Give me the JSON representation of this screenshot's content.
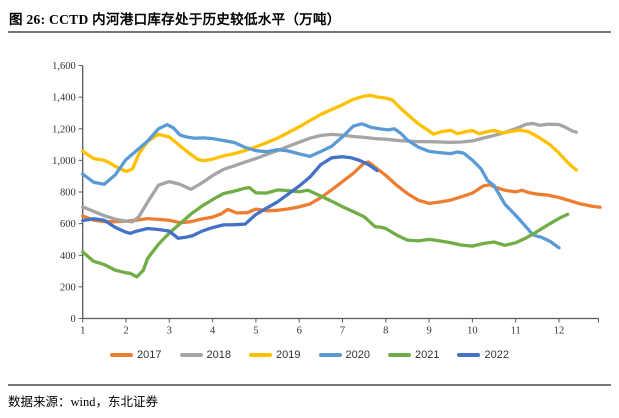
{
  "title": "图 26: CCTD 内河港口库存处于历史较低水平（万吨）",
  "source": "数据来源：wind，东北证券",
  "axis_color": "#595959",
  "tick_label_color": "#333333",
  "chart_data": {
    "type": "line",
    "title": "CCTD内河港口库存（万吨）",
    "xlabel": "",
    "ylabel": "",
    "xlim": [
      1,
      12.95
    ],
    "ylim": [
      0,
      1600
    ],
    "grid": false,
    "legend_position": "bottom",
    "y_tick_values": [
      0,
      200,
      400,
      600,
      800,
      1000,
      1200,
      1400,
      1600
    ],
    "y_tick_labels": [
      "0",
      "200",
      "400",
      "600",
      "800",
      "1,000",
      "1,200",
      "1,400",
      "1,600"
    ],
    "x_tick_values": [
      1,
      2,
      3,
      4,
      5,
      6,
      7,
      8,
      9,
      10,
      11,
      12
    ],
    "x_tick_labels": [
      "1",
      "2",
      "3",
      "4",
      "5",
      "6",
      "7",
      "8",
      "9",
      "10",
      "11",
      "12"
    ],
    "series": [
      {
        "name": "2017",
        "color": "#ED7D31",
        "points": [
          [
            1,
            648
          ],
          [
            1.25,
            622
          ],
          [
            1.5,
            613
          ],
          [
            1.75,
            612
          ],
          [
            2,
            616
          ],
          [
            2.25,
            622
          ],
          [
            2.5,
            632
          ],
          [
            2.75,
            627
          ],
          [
            3,
            621
          ],
          [
            3.25,
            606
          ],
          [
            3.5,
            612
          ],
          [
            3.75,
            629
          ],
          [
            4,
            641
          ],
          [
            4.2,
            662
          ],
          [
            4.35,
            690
          ],
          [
            4.55,
            668
          ],
          [
            4.8,
            669
          ],
          [
            5,
            692
          ],
          [
            5.25,
            681
          ],
          [
            5.5,
            684
          ],
          [
            5.75,
            693
          ],
          [
            6,
            706
          ],
          [
            6.25,
            724
          ],
          [
            6.5,
            764
          ],
          [
            6.75,
            814
          ],
          [
            7,
            866
          ],
          [
            7.25,
            918
          ],
          [
            7.5,
            983
          ],
          [
            7.6,
            990
          ],
          [
            7.75,
            958
          ],
          [
            8,
            905
          ],
          [
            8.25,
            843
          ],
          [
            8.5,
            790
          ],
          [
            8.75,
            748
          ],
          [
            9,
            728
          ],
          [
            9.25,
            737
          ],
          [
            9.5,
            749
          ],
          [
            9.75,
            770
          ],
          [
            10,
            793
          ],
          [
            10.25,
            838
          ],
          [
            10.4,
            846
          ],
          [
            10.55,
            828
          ],
          [
            10.75,
            811
          ],
          [
            11,
            801
          ],
          [
            11.15,
            811
          ],
          [
            11.3,
            796
          ],
          [
            11.5,
            787
          ],
          [
            11.75,
            780
          ],
          [
            12,
            765
          ],
          [
            12.25,
            745
          ],
          [
            12.5,
            725
          ],
          [
            12.75,
            711
          ],
          [
            12.95,
            704
          ]
        ]
      },
      {
        "name": "2018",
        "color": "#A5A5A5",
        "points": [
          [
            1,
            706
          ],
          [
            1.25,
            678
          ],
          [
            1.5,
            650
          ],
          [
            1.75,
            628
          ],
          [
            2,
            616
          ],
          [
            2.15,
            611
          ],
          [
            2.3,
            645
          ],
          [
            2.5,
            736
          ],
          [
            2.75,
            843
          ],
          [
            3,
            866
          ],
          [
            3.25,
            848
          ],
          [
            3.5,
            817
          ],
          [
            3.75,
            857
          ],
          [
            4,
            904
          ],
          [
            4.25,
            943
          ],
          [
            4.5,
            966
          ],
          [
            4.75,
            989
          ],
          [
            5,
            1012
          ],
          [
            5.25,
            1038
          ],
          [
            5.5,
            1062
          ],
          [
            5.75,
            1089
          ],
          [
            6,
            1115
          ],
          [
            6.25,
            1140
          ],
          [
            6.5,
            1157
          ],
          [
            6.75,
            1164
          ],
          [
            7,
            1160
          ],
          [
            7.25,
            1151
          ],
          [
            7.5,
            1145
          ],
          [
            7.75,
            1138
          ],
          [
            8,
            1134
          ],
          [
            8.25,
            1127
          ],
          [
            8.5,
            1122
          ],
          [
            8.75,
            1119
          ],
          [
            9,
            1118
          ],
          [
            9.25,
            1116
          ],
          [
            9.5,
            1114
          ],
          [
            9.75,
            1116
          ],
          [
            10,
            1123
          ],
          [
            10.25,
            1141
          ],
          [
            10.5,
            1157
          ],
          [
            10.75,
            1177
          ],
          [
            11,
            1201
          ],
          [
            11.25,
            1229
          ],
          [
            11.4,
            1233
          ],
          [
            11.55,
            1222
          ],
          [
            11.75,
            1229
          ],
          [
            12,
            1227
          ],
          [
            12.15,
            1209
          ],
          [
            12.3,
            1187
          ],
          [
            12.4,
            1178
          ]
        ]
      },
      {
        "name": "2019",
        "color": "#FFC000",
        "points": [
          [
            1,
            1058
          ],
          [
            1.25,
            1012
          ],
          [
            1.5,
            1000
          ],
          [
            1.6,
            988
          ],
          [
            1.75,
            962
          ],
          [
            2,
            930
          ],
          [
            2.15,
            946
          ],
          [
            2.3,
            1042
          ],
          [
            2.5,
            1120
          ],
          [
            2.75,
            1165
          ],
          [
            3,
            1148
          ],
          [
            3.25,
            1091
          ],
          [
            3.5,
            1038
          ],
          [
            3.65,
            1008
          ],
          [
            3.8,
            997
          ],
          [
            4,
            1008
          ],
          [
            4.25,
            1028
          ],
          [
            4.5,
            1043
          ],
          [
            4.75,
            1062
          ],
          [
            5,
            1086
          ],
          [
            5.25,
            1112
          ],
          [
            5.5,
            1141
          ],
          [
            5.75,
            1176
          ],
          [
            6,
            1212
          ],
          [
            6.25,
            1252
          ],
          [
            6.5,
            1291
          ],
          [
            6.75,
            1322
          ],
          [
            7,
            1352
          ],
          [
            7.25,
            1386
          ],
          [
            7.5,
            1406
          ],
          [
            7.65,
            1411
          ],
          [
            7.8,
            1401
          ],
          [
            8,
            1394
          ],
          [
            8.15,
            1382
          ],
          [
            8.3,
            1341
          ],
          [
            8.5,
            1291
          ],
          [
            8.75,
            1232
          ],
          [
            9,
            1186
          ],
          [
            9.1,
            1166
          ],
          [
            9.3,
            1182
          ],
          [
            9.5,
            1191
          ],
          [
            9.65,
            1169
          ],
          [
            9.85,
            1182
          ],
          [
            10,
            1189
          ],
          [
            10.15,
            1169
          ],
          [
            10.3,
            1179
          ],
          [
            10.5,
            1189
          ],
          [
            10.7,
            1173
          ],
          [
            10.9,
            1183
          ],
          [
            11.1,
            1192
          ],
          [
            11.3,
            1181
          ],
          [
            11.5,
            1151
          ],
          [
            11.8,
            1098
          ],
          [
            12,
            1046
          ],
          [
            12.25,
            973
          ],
          [
            12.4,
            939
          ]
        ]
      },
      {
        "name": "2020",
        "color": "#5B9BD5",
        "points": [
          [
            1,
            913
          ],
          [
            1.25,
            862
          ],
          [
            1.5,
            849
          ],
          [
            1.75,
            908
          ],
          [
            2,
            1005
          ],
          [
            2.25,
            1063
          ],
          [
            2.5,
            1122
          ],
          [
            2.75,
            1200
          ],
          [
            2.95,
            1226
          ],
          [
            3.1,
            1204
          ],
          [
            3.25,
            1160
          ],
          [
            3.4,
            1148
          ],
          [
            3.6,
            1140
          ],
          [
            3.8,
            1142
          ],
          [
            4,
            1138
          ],
          [
            4.25,
            1126
          ],
          [
            4.5,
            1113
          ],
          [
            4.75,
            1082
          ],
          [
            5,
            1061
          ],
          [
            5.25,
            1055
          ],
          [
            5.5,
            1068
          ],
          [
            5.75,
            1059
          ],
          [
            6,
            1041
          ],
          [
            6.25,
            1025
          ],
          [
            6.5,
            1056
          ],
          [
            6.75,
            1089
          ],
          [
            7,
            1149
          ],
          [
            7.25,
            1217
          ],
          [
            7.45,
            1231
          ],
          [
            7.65,
            1210
          ],
          [
            7.85,
            1200
          ],
          [
            8.05,
            1193
          ],
          [
            8.2,
            1200
          ],
          [
            8.35,
            1170
          ],
          [
            8.5,
            1128
          ],
          [
            8.75,
            1084
          ],
          [
            9,
            1057
          ],
          [
            9.25,
            1049
          ],
          [
            9.5,
            1043
          ],
          [
            9.65,
            1053
          ],
          [
            9.8,
            1046
          ],
          [
            10,
            1002
          ],
          [
            10.2,
            946
          ],
          [
            10.35,
            872
          ],
          [
            10.5,
            841
          ],
          [
            10.75,
            723
          ],
          [
            11,
            652
          ],
          [
            11.2,
            591
          ],
          [
            11.4,
            529
          ],
          [
            11.6,
            513
          ],
          [
            11.8,
            487
          ],
          [
            12,
            447
          ]
        ]
      },
      {
        "name": "2021",
        "color": "#70AD47",
        "points": [
          [
            1,
            421
          ],
          [
            1.25,
            362
          ],
          [
            1.5,
            341
          ],
          [
            1.75,
            306
          ],
          [
            2,
            289
          ],
          [
            2.1,
            286
          ],
          [
            2.25,
            263
          ],
          [
            2.4,
            305
          ],
          [
            2.5,
            380
          ],
          [
            2.75,
            470
          ],
          [
            3,
            540
          ],
          [
            3.25,
            600
          ],
          [
            3.5,
            660
          ],
          [
            3.75,
            710
          ],
          [
            4,
            752
          ],
          [
            4.25,
            790
          ],
          [
            4.5,
            806
          ],
          [
            4.75,
            824
          ],
          [
            4.85,
            828
          ],
          [
            5,
            795
          ],
          [
            5.25,
            793
          ],
          [
            5.5,
            813
          ],
          [
            5.75,
            809
          ],
          [
            6,
            801
          ],
          [
            6.2,
            811
          ],
          [
            6.5,
            775
          ],
          [
            6.75,
            742
          ],
          [
            7,
            707
          ],
          [
            7.25,
            676
          ],
          [
            7.5,
            644
          ],
          [
            7.75,
            581
          ],
          [
            7.9,
            576
          ],
          [
            8,
            569
          ],
          [
            8.25,
            528
          ],
          [
            8.5,
            496
          ],
          [
            8.75,
            491
          ],
          [
            9,
            500
          ],
          [
            9.25,
            491
          ],
          [
            9.5,
            479
          ],
          [
            9.75,
            464
          ],
          [
            10,
            458
          ],
          [
            10.25,
            474
          ],
          [
            10.5,
            484
          ],
          [
            10.75,
            463
          ],
          [
            11,
            479
          ],
          [
            11.25,
            511
          ],
          [
            11.5,
            551
          ],
          [
            11.75,
            593
          ],
          [
            12,
            633
          ],
          [
            12.2,
            659
          ]
        ]
      },
      {
        "name": "2022",
        "color": "#4472C4",
        "points": [
          [
            1,
            619
          ],
          [
            1.25,
            631
          ],
          [
            1.5,
            621
          ],
          [
            1.75,
            576
          ],
          [
            2,
            546
          ],
          [
            2.1,
            539
          ],
          [
            2.25,
            553
          ],
          [
            2.5,
            569
          ],
          [
            2.75,
            563
          ],
          [
            3,
            553
          ],
          [
            3.2,
            508
          ],
          [
            3.4,
            515
          ],
          [
            3.55,
            525
          ],
          [
            3.75,
            552
          ],
          [
            4,
            575
          ],
          [
            4.25,
            592
          ],
          [
            4.5,
            593
          ],
          [
            4.75,
            597
          ],
          [
            5,
            658
          ],
          [
            5.25,
            698
          ],
          [
            5.5,
            738
          ],
          [
            5.75,
            788
          ],
          [
            6,
            838
          ],
          [
            6.25,
            895
          ],
          [
            6.5,
            973
          ],
          [
            6.75,
            1016
          ],
          [
            7,
            1023
          ],
          [
            7.2,
            1016
          ],
          [
            7.4,
            999
          ],
          [
            7.6,
            973
          ],
          [
            7.8,
            936
          ]
        ]
      }
    ]
  }
}
